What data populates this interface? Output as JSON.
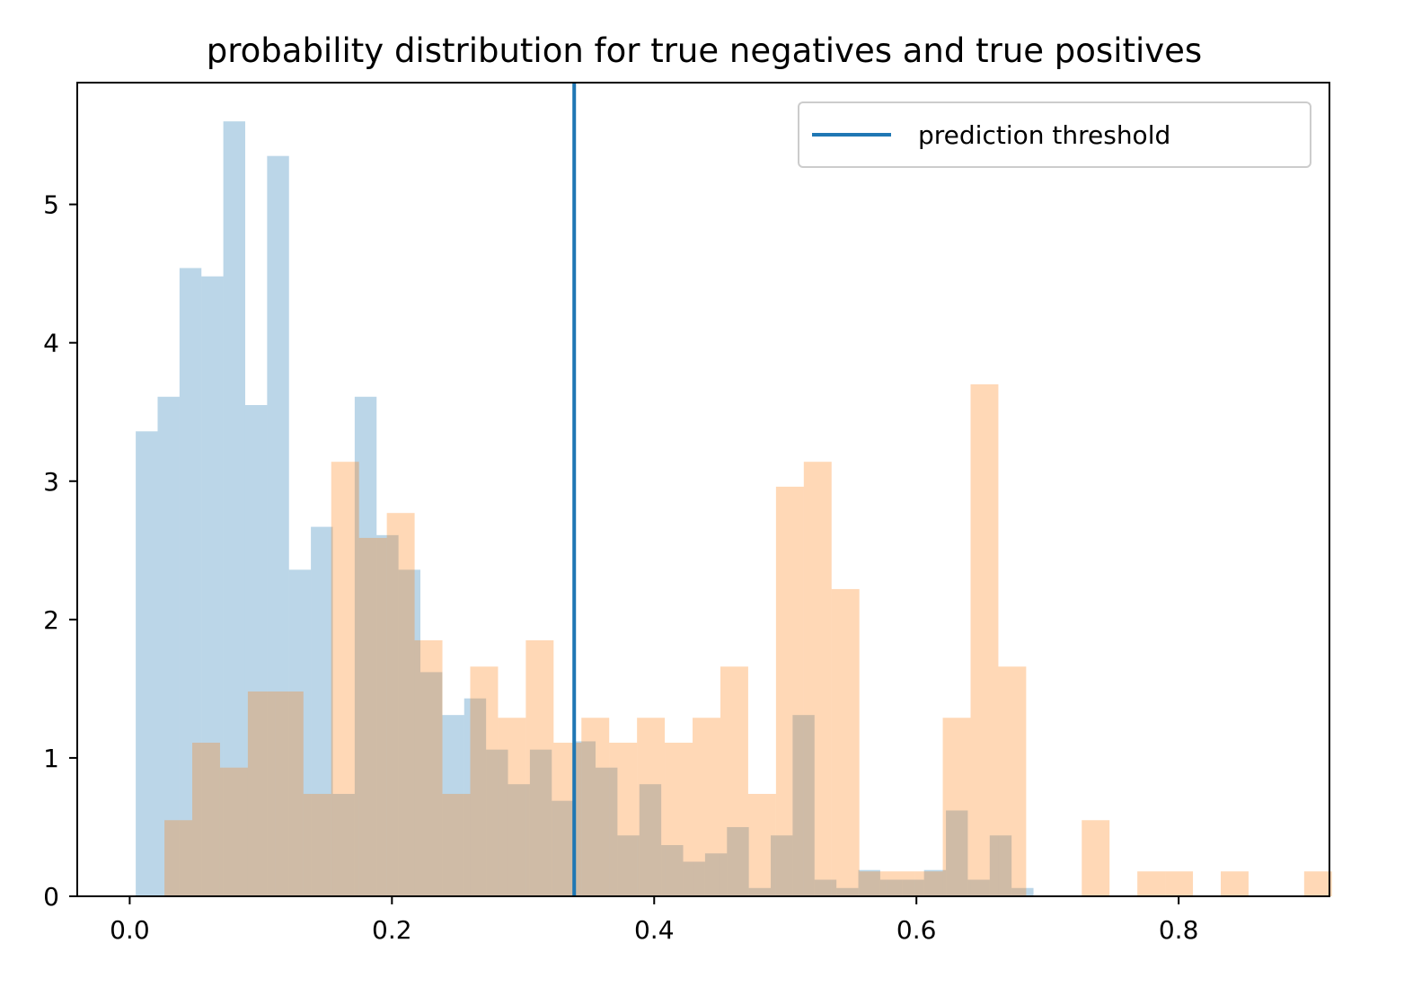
{
  "chart_data": {
    "type": "bar",
    "title": "probability distribution for true negatives and true positives",
    "xlabel": "",
    "ylabel": "",
    "xlim": [
      -0.04,
      0.915
    ],
    "ylim": [
      0,
      5.88
    ],
    "xticks": [
      "0.0",
      "0.2",
      "0.4",
      "0.6",
      "0.8"
    ],
    "yticks": [
      "0",
      "1",
      "2",
      "3",
      "4",
      "5"
    ],
    "grid": false,
    "legend_position": "top-right",
    "threshold": {
      "name": "prediction threshold",
      "x": 0.339,
      "color": "#1f77b4"
    },
    "series": [
      {
        "color": "#1f77b4",
        "opacity": 0.3,
        "bin_start": 0.0046,
        "bin_width": 0.0167,
        "values": [
          3.36,
          3.61,
          4.54,
          4.48,
          5.6,
          3.55,
          5.35,
          2.36,
          2.67,
          0.74,
          3.61,
          2.61,
          2.36,
          1.62,
          1.31,
          1.43,
          1.06,
          0.81,
          1.06,
          0.69,
          1.12,
          0.93,
          0.44,
          0.81,
          0.37,
          0.25,
          0.31,
          0.5,
          0.06,
          0.44,
          1.31,
          0.12,
          0.06,
          0.19,
          0.12,
          0.12,
          0.19,
          0.62,
          0.12,
          0.44,
          0.06
        ]
      },
      {
        "color": "#ff7f0e",
        "opacity": 0.3,
        "bin_start": 0.0265,
        "bin_width": 0.0212,
        "values": [
          0.55,
          1.11,
          0.93,
          1.48,
          1.48,
          0.74,
          3.14,
          2.59,
          2.77,
          1.85,
          0.74,
          1.66,
          1.29,
          1.85,
          1.11,
          1.29,
          1.11,
          1.29,
          1.11,
          1.29,
          1.66,
          0.74,
          2.96,
          3.14,
          2.22,
          0.18,
          0.18,
          0.18,
          1.29,
          3.7,
          1.66,
          0.0,
          0.0,
          0.55,
          0.0,
          0.18,
          0.18,
          0.0,
          0.18,
          0.0,
          0.0,
          0.18
        ]
      }
    ]
  }
}
